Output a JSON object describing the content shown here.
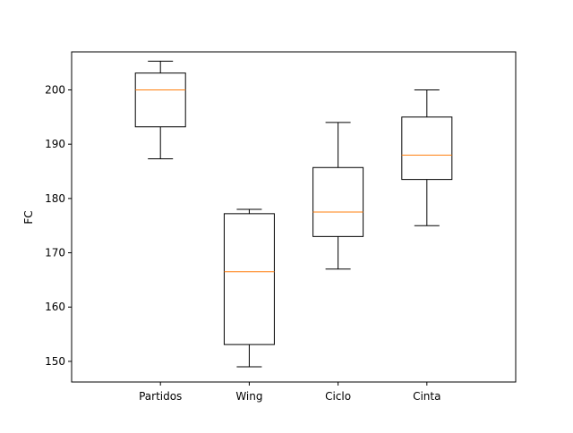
{
  "chart_data": {
    "type": "box",
    "title": "",
    "xlabel": "",
    "ylabel": "FC",
    "ylim": [
      146.2,
      207.0
    ],
    "yticks": [
      150,
      160,
      170,
      180,
      190,
      200
    ],
    "grid": false,
    "categories": [
      "Partidos",
      "Wing",
      "Ciclo",
      "Cinta"
    ],
    "boxes": [
      {
        "category": "Partidos",
        "whisker_low": 187.3,
        "q1": 193.2,
        "median": 200.0,
        "q3": 203.1,
        "whisker_high": 205.3
      },
      {
        "category": "Wing",
        "whisker_low": 149.0,
        "q1": 153.1,
        "median": 166.5,
        "q3": 177.2,
        "whisker_high": 178.0
      },
      {
        "category": "Ciclo",
        "whisker_low": 167.0,
        "q1": 173.0,
        "median": 177.5,
        "q3": 185.7,
        "whisker_high": 194.0
      },
      {
        "category": "Cinta",
        "whisker_low": 175.0,
        "q1": 183.5,
        "median": 188.0,
        "q3": 195.0,
        "whisker_high": 200.0
      }
    ],
    "colors": {
      "box": "#000000",
      "median": "#ff7f0e",
      "axes": "#000000"
    }
  }
}
